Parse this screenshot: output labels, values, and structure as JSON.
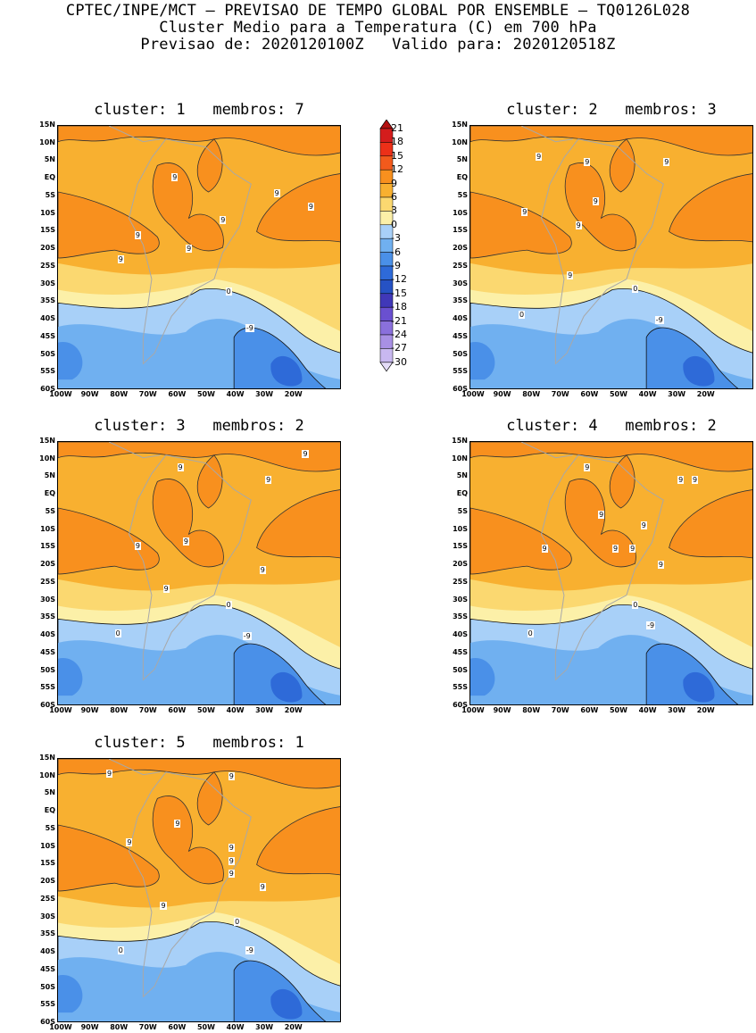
{
  "header": {
    "line1": "CPTEC/INPE/MCT — PREVISAO DE TEMPO GLOBAL POR ENSEMBLE — TQ0126L028",
    "line2": "Cluster Medio para a Temperatura (C) em 700 hPa",
    "line3": "Previsao de: 2020120100Z   Valido para: 2020120518Z"
  },
  "lat_ticks": [
    "15N",
    "10N",
    "5N",
    "EQ",
    "5S",
    "10S",
    "15S",
    "20S",
    "25S",
    "30S",
    "35S",
    "40S",
    "45S",
    "50S",
    "55S",
    "60S"
  ],
  "lon_ticks": [
    "100W",
    "90W",
    "80W",
    "70W",
    "60W",
    "50W",
    "40W",
    "30W",
    "20W"
  ],
  "colorbar": {
    "levels": [
      "21",
      "18",
      "15",
      "12",
      "9",
      "6",
      "3",
      "0",
      "-3",
      "-6",
      "-9",
      "-12",
      "-15",
      "-18",
      "-21",
      "-24",
      "-27",
      "-30"
    ],
    "colors": [
      "#b31010",
      "#d41c1c",
      "#ec3018",
      "#f25a1c",
      "#f8901e",
      "#f8b030",
      "#fbd870",
      "#fcf0a8",
      "#a8d0f8",
      "#70b0f0",
      "#4a90e8",
      "#2e6ad8",
      "#2652c4",
      "#4038b8",
      "#6a50d0",
      "#8a70dc",
      "#a890e4",
      "#c8b8f0",
      "#e4dcf8"
    ]
  },
  "panels": [
    {
      "title": "cluster: 1   membros: 7",
      "contour_labels": [
        "9",
        "9",
        "9",
        "9",
        "9",
        "9",
        "9",
        "0",
        "-9"
      ]
    },
    {
      "title": "cluster: 2   membros: 3",
      "contour_labels": [
        "9",
        "9",
        "9",
        "9",
        "9",
        "9",
        "9",
        "0",
        "0",
        "-9"
      ]
    },
    {
      "title": "cluster: 3   membros: 2",
      "contour_labels": [
        "9",
        "9",
        "9",
        "9",
        "9",
        "9",
        "9",
        "0",
        "0",
        "-9"
      ]
    },
    {
      "title": "cluster: 4   membros: 2",
      "contour_labels": [
        "9",
        "9",
        "9",
        "9",
        "9",
        "9",
        "9",
        "9",
        "9",
        "0",
        "0",
        "-9"
      ]
    },
    {
      "title": "cluster: 5   membros: 1",
      "contour_labels": [
        "9",
        "9",
        "9",
        "9",
        "9",
        "9",
        "9",
        "9",
        "9",
        "0",
        "0",
        "-9"
      ]
    }
  ]
}
